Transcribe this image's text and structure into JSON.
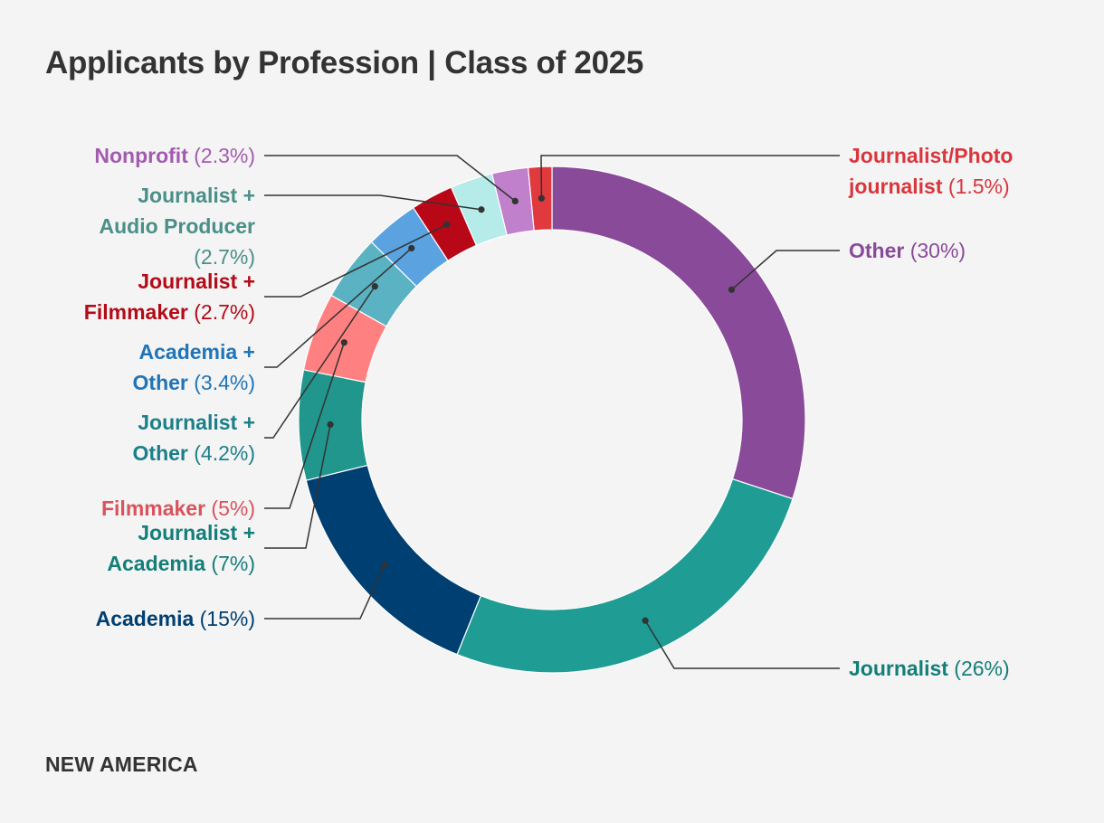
{
  "title": "Applicants by Profession | Class of 2025",
  "footer": "NEW AMERICA",
  "colors": {
    "background": "#f4f4f4",
    "text": "#333333",
    "leader": "#333333"
  },
  "chart_data": {
    "type": "pie",
    "variant": "donut",
    "title": "Applicants by Profession | Class of 2025",
    "unit": "%",
    "slices": [
      {
        "name": "Other",
        "pct_label": "(30%)",
        "value": 30,
        "color": "#8a4a9a",
        "label_color": "#8a4a9a",
        "label_lines": [
          "Other"
        ],
        "side": "right"
      },
      {
        "name": "Journalist",
        "pct_label": "(26%)",
        "value": 26,
        "color": "#1f9c93",
        "label_color": "#147e79",
        "label_lines": [
          "Journalist"
        ],
        "side": "right"
      },
      {
        "name": "Academia",
        "pct_label": "(15%)",
        "value": 15,
        "color": "#003f72",
        "label_color": "#003f72",
        "label_lines": [
          "Academia"
        ],
        "side": "left"
      },
      {
        "name": "Journalist + Academia",
        "pct_label": "(7%)",
        "value": 7,
        "color": "#21968c",
        "label_color": "#147e79",
        "label_lines": [
          "Journalist +",
          "Academia"
        ],
        "side": "left"
      },
      {
        "name": "Filmmaker",
        "pct_label": "(5%)",
        "value": 5,
        "color": "#ff8080",
        "label_color": "#d9535d",
        "label_lines": [
          "Filmmaker"
        ],
        "side": "left"
      },
      {
        "name": "Journalist + Other",
        "pct_label": "(4.2%)",
        "value": 4.2,
        "color": "#5ab2c2",
        "label_color": "#1b7f8a",
        "label_lines": [
          "Journalist +",
          "Other"
        ],
        "side": "left"
      },
      {
        "name": "Academia + Other",
        "pct_label": "(3.4%)",
        "value": 3.4,
        "color": "#5aa3e0",
        "label_color": "#2074b8",
        "label_lines": [
          "Academia +",
          "Other"
        ],
        "side": "left"
      },
      {
        "name": "Journalist + Filmmaker",
        "pct_label": "(2.7%)",
        "value": 2.7,
        "color": "#b80818",
        "label_color": "#b30b18",
        "label_lines": [
          "Journalist +",
          "Filmmaker"
        ],
        "side": "left"
      },
      {
        "name": "Journalist + Audio Producer",
        "pct_label": "(2.7%)",
        "value": 2.7,
        "color": "#b5ebe8",
        "label_color": "#4a8f88",
        "label_lines": [
          "Journalist +",
          "Audio Producer"
        ],
        "side": "left"
      },
      {
        "name": "Nonprofit",
        "pct_label": "(2.3%)",
        "value": 2.3,
        "color": "#c080cc",
        "label_color": "#a35bb0",
        "label_lines": [
          "Nonprofit"
        ],
        "side": "left"
      },
      {
        "name": "Journalist/Photo journalist",
        "pct_label": "(1.5%)",
        "value": 1.5,
        "color": "#e0393e",
        "label_color": "#d9363e",
        "label_lines": [
          "Journalist/Photo",
          "journalist"
        ],
        "side": "right"
      }
    ]
  }
}
